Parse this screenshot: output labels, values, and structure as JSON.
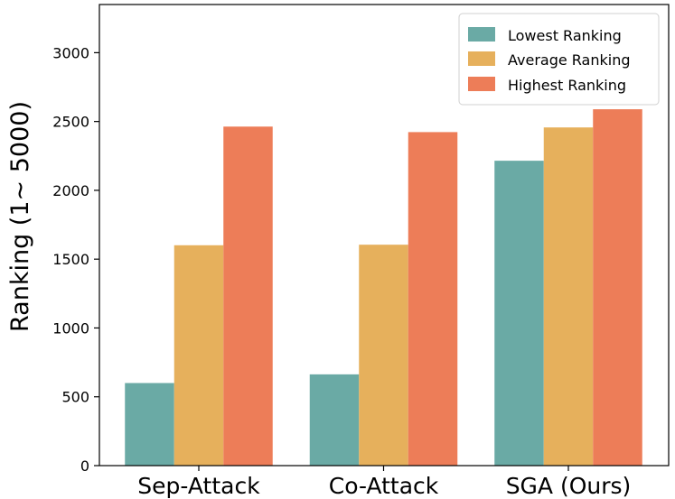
{
  "chart_data": {
    "type": "bar",
    "title": "",
    "xlabel": "",
    "ylabel": "Ranking (1~ 5000)",
    "ylim": [
      0,
      3350
    ],
    "yticks": [
      0,
      500,
      1000,
      1500,
      2000,
      2500,
      3000
    ],
    "grid": false,
    "legend_position": "top-right",
    "categories": [
      "Sep-Attack",
      "Co-Attack",
      "SGA (Ours)"
    ],
    "series": [
      {
        "name": "Lowest Ranking",
        "color": "#6aaaa5",
        "values": [
          600,
          663,
          2215
        ]
      },
      {
        "name": "Average Ranking",
        "color": "#e6b05c",
        "values": [
          1601,
          1605,
          2457
        ]
      },
      {
        "name": "Highest Ranking",
        "color": "#ed7d58",
        "values": [
          2463,
          2423,
          2589
        ]
      }
    ]
  }
}
